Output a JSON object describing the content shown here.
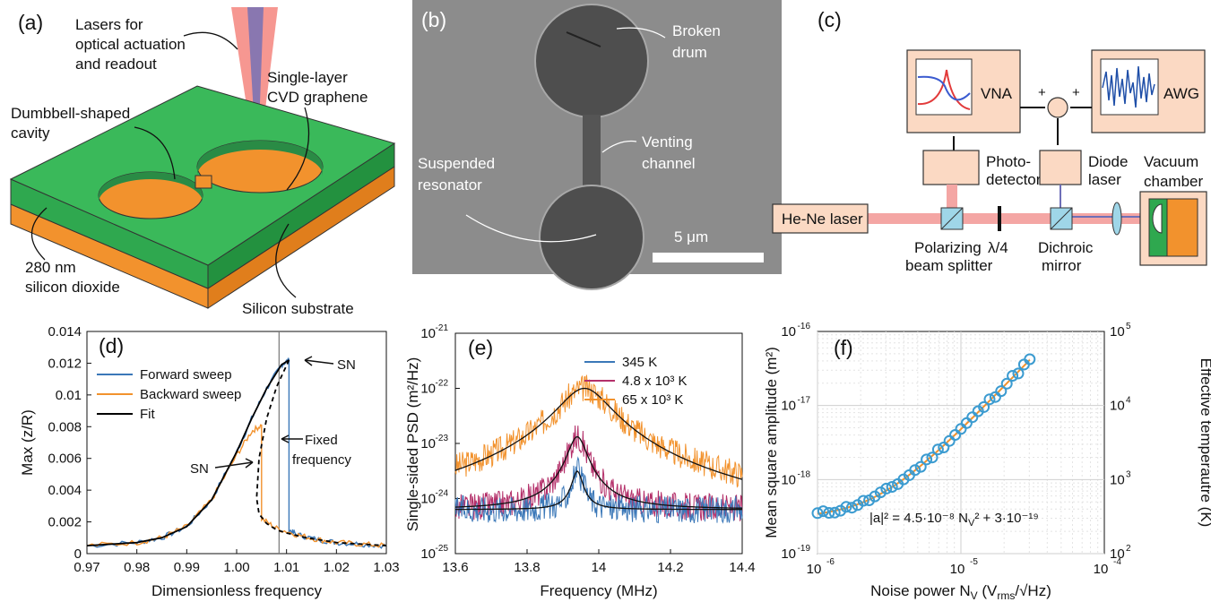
{
  "panel_a": {
    "letter": "(a)",
    "lasers_line1": "Lasers for",
    "lasers_line2": "optical actuation",
    "lasers_line3": "and readout",
    "graphene_line1": "Single-layer",
    "graphene_line2": "CVD graphene",
    "cavity_line1": "Dumbbell-shaped",
    "cavity_line2": "cavity",
    "oxide_line1": "280 nm",
    "oxide_line2": "silicon dioxide",
    "substrate": "Silicon substrate",
    "colors": {
      "green": "#2fa84f",
      "orange": "#f2922d",
      "laser_red": "#f4857e",
      "laser_blue": "#6e6fb8"
    }
  },
  "panel_b": {
    "letter": "(b)",
    "broken_line1": "Broken",
    "broken_line2": "drum",
    "venting_line1": "Venting",
    "venting_line2": "channel",
    "suspended_line1": "Suspended",
    "suspended_line2": "resonator",
    "scale_label": "5 μm"
  },
  "panel_c": {
    "letter": "(c)",
    "vna": "VNA",
    "awg": "AWG",
    "photodetector_line1": "Photo-",
    "photodetector_line2": "detector",
    "diode_line1": "Diode",
    "diode_line2": "laser",
    "vacuum_line1": "Vacuum",
    "vacuum_line2": "chamber",
    "hene": "He-Ne laser",
    "pbs_line1": "Polarizing",
    "pbs_line2": "beam splitter",
    "quarter_wave": "λ/4",
    "dichroic_line1": "Dichroic",
    "dichroic_line2": "mirror",
    "plus": "+",
    "colors": {
      "box": "#fbd9c3",
      "beam": "#f4a6a4",
      "splitter": "#9fd6e8"
    }
  },
  "panel_d": {
    "letter": "(d)",
    "sn_top": "SN",
    "sn_left": "SN",
    "fixed_line1": "Fixed",
    "fixed_line2": "frequency",
    "chart_data": {
      "type": "line",
      "xlabel": "Dimensionless frequency",
      "ylabel": "Max (z/R)",
      "xlim": [
        0.97,
        1.03
      ],
      "ylim": [
        0,
        0.014
      ],
      "xticks": [
        "0.97",
        "0.98",
        "0.99",
        "1.00",
        "1.01",
        "1.02",
        "1.03"
      ],
      "yticks": [
        "0",
        "0.002",
        "0.004",
        "0.006",
        "0.008",
        "0.01",
        "0.012",
        "0.014"
      ],
      "legend": "top-left",
      "series": [
        {
          "name": "Forward sweep",
          "color": "#3b78b8",
          "x": [
            0.97,
            0.98,
            0.985,
            0.99,
            0.995,
            1.0,
            1.003,
            1.006,
            1.009,
            1.0105,
            1.0105,
            1.012,
            1.016,
            1.02,
            1.025,
            1.03
          ],
          "y": [
            0.0005,
            0.0007,
            0.001,
            0.0017,
            0.0034,
            0.0064,
            0.0085,
            0.0104,
            0.0119,
            0.0122,
            0.0015,
            0.0012,
            0.0009,
            0.0007,
            0.0006,
            0.0005
          ]
        },
        {
          "name": "Backward sweep",
          "color": "#f2922d",
          "x": [
            0.97,
            0.98,
            0.985,
            0.99,
            0.995,
            1.0,
            1.003,
            1.005,
            1.005,
            1.008,
            1.012,
            1.016,
            1.02,
            1.025,
            1.03
          ],
          "y": [
            0.0005,
            0.0007,
            0.001,
            0.0017,
            0.0034,
            0.0062,
            0.0077,
            0.0081,
            0.0022,
            0.0016,
            0.0012,
            0.0009,
            0.0007,
            0.0006,
            0.0005
          ]
        },
        {
          "name": "Fit",
          "color": "#000000",
          "x": [
            0.97,
            0.98,
            0.985,
            0.99,
            0.995,
            1.0,
            1.003,
            1.006,
            1.009,
            1.0105
          ],
          "y": [
            0.0005,
            0.0007,
            0.001,
            0.0017,
            0.0034,
            0.0064,
            0.0085,
            0.0104,
            0.0119,
            0.0122
          ]
        },
        {
          "name": "",
          "color": "#000000",
          "dashed": true,
          "x": [
            1.0105,
            1.008,
            1.006,
            1.0045,
            1.004,
            1.0045,
            1.006,
            1.008,
            1.01,
            1.014,
            1.02,
            1.03
          ],
          "y": [
            0.0122,
            0.0105,
            0.0085,
            0.006,
            0.0035,
            0.0025,
            0.0019,
            0.0015,
            0.0013,
            0.001,
            0.0007,
            0.0005
          ]
        }
      ],
      "fixed_frequency": 1.0085
    }
  },
  "panel_e": {
    "letter": "(e)",
    "chart_data": {
      "type": "line",
      "xlabel": "Frequency (MHz)",
      "ylabel": "Single-sided PSD (m²/Hz)",
      "xlim": [
        13.6,
        14.4
      ],
      "ylim_log10": [
        -25,
        -21
      ],
      "xticks": [
        "13.6",
        "13.8",
        "14",
        "14.2",
        "14.4"
      ],
      "yticks_exp": [
        "-25",
        "-24",
        "-23",
        "-22",
        "-21"
      ],
      "legend": "top-right",
      "series": [
        {
          "name": "345 K",
          "color": "#3b78b8",
          "peak_log10": -23.6,
          "floor_log10": -24.2,
          "center": 13.94,
          "width": 0.015
        },
        {
          "name": "4.8 x 10³ K",
          "color": "#b4306a",
          "peak_log10": -22.9,
          "floor_log10": -24.2,
          "center": 13.94,
          "width": 0.025
        },
        {
          "name": "65 x 10³ K",
          "color": "#f2922d",
          "peak_log10": -22.0,
          "floor_log10": -24.2,
          "center": 13.96,
          "width": 0.065
        }
      ]
    }
  },
  "panel_f": {
    "letter": "(f)",
    "equation": "|a|² = 4.5·10⁻⁸ N",
    "equation_rest": "² + 3·10⁻¹⁹",
    "chart_data": {
      "type": "scatter",
      "xlabel": "Noise power N",
      "xlabel_unit": "(V",
      "ylabel": "Mean square amplitude (m²)",
      "y2label": "Effective temperautre (K)",
      "xlim_log10": [
        -6,
        -4
      ],
      "ylim_log10": [
        -19,
        -16
      ],
      "y2lim_log10": [
        2,
        5
      ],
      "xticks_exp": [
        "-6",
        "-5",
        "-4"
      ],
      "yticks_exp": [
        "-19",
        "-18",
        "-17",
        "-16"
      ],
      "y2ticks_exp": [
        "2",
        "3",
        "4",
        "5"
      ],
      "marker_color": "#3b9bd0",
      "fit_color": "#f2922d",
      "points_x_log10": [
        -6.0,
        -5.96,
        -5.92,
        -5.88,
        -5.84,
        -5.8,
        -5.76,
        -5.72,
        -5.68,
        -5.64,
        -5.6,
        -5.56,
        -5.52,
        -5.48,
        -5.44,
        -5.4,
        -5.36,
        -5.32,
        -5.28,
        -5.24,
        -5.2,
        -5.16,
        -5.12,
        -5.08,
        -5.04,
        -5.0,
        -4.96,
        -4.92,
        -4.88,
        -4.84,
        -4.8,
        -4.76,
        -4.72,
        -4.68,
        -4.64,
        -4.6,
        -4.56,
        -4.52
      ],
      "fit": {
        "a": 4.5e-08,
        "b": 3e-19
      }
    }
  }
}
